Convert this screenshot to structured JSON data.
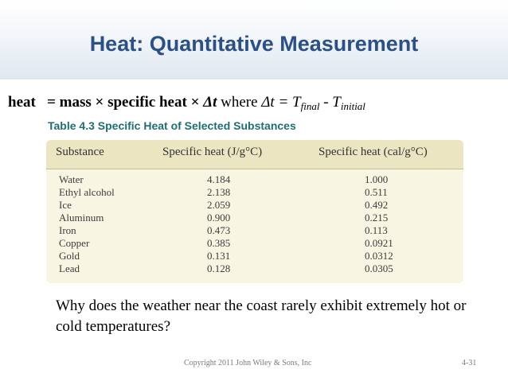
{
  "slide": {
    "title": "Heat: Quantitative Measurement",
    "equation": {
      "lhs": "heat",
      "rhs": "= mass × specific heat × ",
      "delta_t": "Δt",
      "where": " where ",
      "delta_t2": "Δt",
      "equals": " = T",
      "final_sub": "final",
      "minus": " - T",
      "initial_sub": "initial"
    },
    "question": "Why does the weather near the coast rarely exhibit extremely hot or cold temperatures?",
    "copyright": "Copyright 2011 John Wiley & Sons, Inc",
    "page_number": "4-31"
  },
  "table": {
    "caption": "Table 4.3  Specific Heat of Selected Substances",
    "headers": [
      "Substance",
      "Specific heat (J/g°C)",
      "Specific heat (cal/g°C)"
    ],
    "rows": [
      [
        "Water",
        "4.184",
        "1.000"
      ],
      [
        "Ethyl alcohol",
        "2.138",
        "0.511"
      ],
      [
        "Ice",
        "2.059",
        "0.492"
      ],
      [
        "Aluminum",
        "0.900",
        "0.215"
      ],
      [
        "Iron",
        "0.473",
        "0.113"
      ],
      [
        "Copper",
        "0.385",
        "0.0921"
      ],
      [
        "Gold",
        "0.131",
        "0.0312"
      ],
      [
        "Lead",
        "0.128",
        "0.0305"
      ]
    ]
  }
}
